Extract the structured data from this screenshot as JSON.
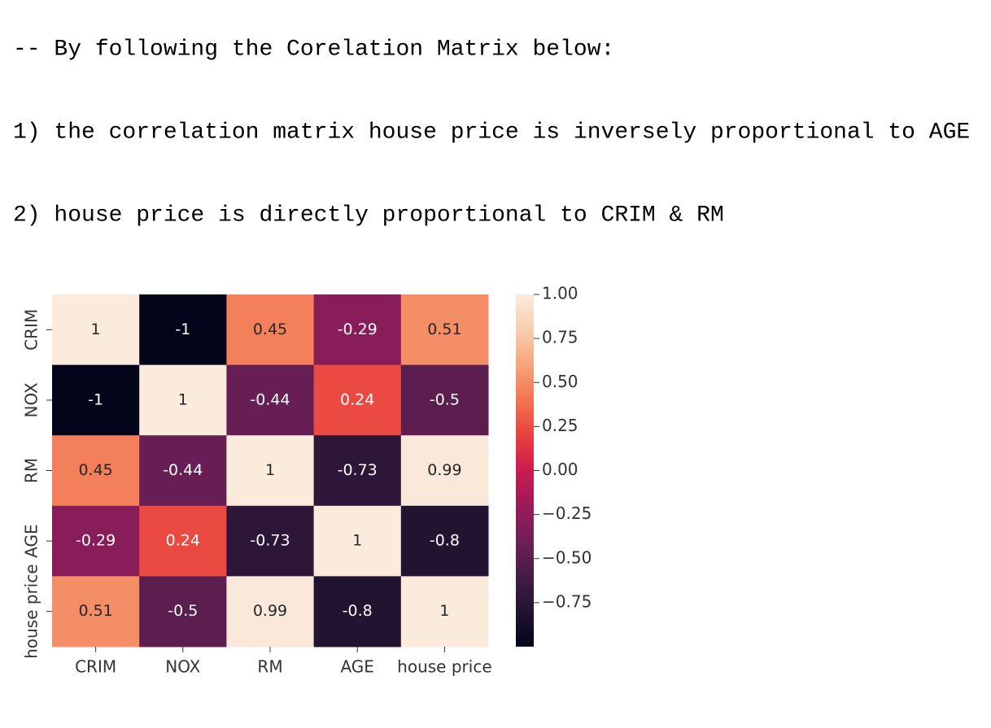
{
  "lines": [
    "-- By following the Corelation Matrix below:",
    "1) the correlation matrix house price is inversely proportional to AGE",
    "2) house price is directly proportional to CRIM & RM"
  ],
  "chart_data": {
    "type": "heatmap",
    "categories": [
      "CRIM",
      "NOX",
      "RM",
      "AGE",
      "house price"
    ],
    "values": [
      [
        1,
        -1,
        0.45,
        -0.29,
        0.51
      ],
      [
        -1,
        1,
        -0.44,
        0.24,
        -0.5
      ],
      [
        0.45,
        -0.44,
        1,
        -0.73,
        0.99
      ],
      [
        -0.29,
        0.24,
        -0.73,
        1,
        -0.8
      ],
      [
        0.51,
        -0.5,
        0.99,
        -0.8,
        1
      ]
    ],
    "clim": [
      -1,
      1
    ],
    "cticks": [
      {
        "value": 1,
        "label": "1.00"
      },
      {
        "value": 0.75,
        "label": "0.75"
      },
      {
        "value": 0.5,
        "label": "0.50"
      },
      {
        "value": 0.25,
        "label": "0.25"
      },
      {
        "value": 0,
        "label": "0.00"
      },
      {
        "value": -0.25,
        "label": "−0.25"
      },
      {
        "value": -0.5,
        "label": "−0.50"
      },
      {
        "value": -0.75,
        "label": "−0.75"
      }
    ],
    "colorscale": [
      "#03051a",
      "#221331",
      "#451c47",
      "#701f57",
      "#9b1b5b",
      "#cb1b4f",
      "#e8403e",
      "#f2744f",
      "#f6a47b",
      "#f7cdb0",
      "#faebdd"
    ]
  }
}
